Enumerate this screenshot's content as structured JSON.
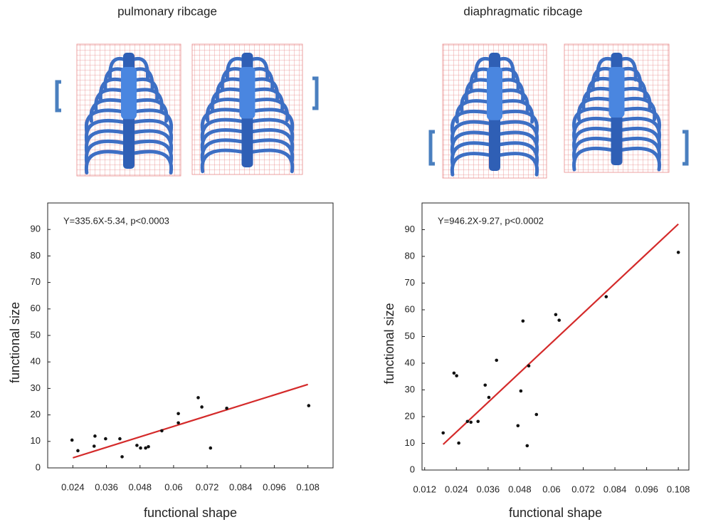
{
  "chart_data": [
    {
      "type": "scatter",
      "title": "pulmonary ribcage",
      "annotation": "Y=335.6X-5.34, p<0.0003",
      "xlabel": "functional shape",
      "ylabel": "functional size",
      "x": [
        0.0237,
        0.0258,
        0.0316,
        0.0319,
        0.0357,
        0.0408,
        0.0416,
        0.0469,
        0.0482,
        0.05,
        0.051,
        0.0558,
        0.0617,
        0.0617,
        0.0688,
        0.0701,
        0.0732,
        0.079,
        0.1083
      ],
      "values": [
        10.5,
        6.5,
        8.2,
        12,
        11,
        11,
        4.2,
        8.5,
        7.5,
        7.5,
        8,
        14,
        17,
        20.5,
        26.5,
        23,
        7.5,
        22.5,
        23.5
      ],
      "color": "#111111",
      "fit": {
        "x": [
          0.024,
          0.108
        ],
        "values": [
          3.8,
          31.5
        ],
        "color": "#d42a2a"
      },
      "xlim": [
        0.015,
        0.117
      ],
      "xticks": [
        0.024,
        0.036,
        0.048,
        0.06,
        0.072,
        0.084,
        0.096,
        0.108
      ],
      "ylim": [
        0,
        100
      ],
      "yticks": [
        0,
        10,
        20,
        30,
        40,
        50,
        60,
        70,
        80,
        90
      ]
    },
    {
      "type": "scatter",
      "title": "diaphragmatic ribcage",
      "annotation": "Y=946.2X-9.27, p<0.0002",
      "xlabel": "functional shape",
      "ylabel": "functional size",
      "x": [
        0.019,
        0.0231,
        0.0241,
        0.0249,
        0.0282,
        0.0295,
        0.0322,
        0.0349,
        0.0363,
        0.0392,
        0.0473,
        0.0484,
        0.0492,
        0.0508,
        0.0514,
        0.0543,
        0.0616,
        0.0629,
        0.0807,
        0.108
      ],
      "values": [
        13.9,
        36.3,
        35.3,
        10.1,
        18.2,
        17.9,
        18.2,
        31.8,
        27.2,
        41.1,
        16.6,
        29.6,
        55.8,
        9.1,
        39,
        20.8,
        58.2,
        56.1,
        64.9,
        81.5
      ],
      "color": "#111111",
      "fit": {
        "x": [
          0.019,
          0.108
        ],
        "values": [
          9.6,
          92.1
        ],
        "color": "#d42a2a"
      },
      "xlim": [
        0.011,
        0.112
      ],
      "xticks": [
        0.012,
        0.024,
        0.036,
        0.048,
        0.06,
        0.072,
        0.084,
        0.096,
        0.108
      ],
      "ylim": [
        0,
        100
      ],
      "yticks": [
        0,
        10,
        20,
        30,
        40,
        50,
        60,
        70,
        80,
        90
      ]
    }
  ]
}
